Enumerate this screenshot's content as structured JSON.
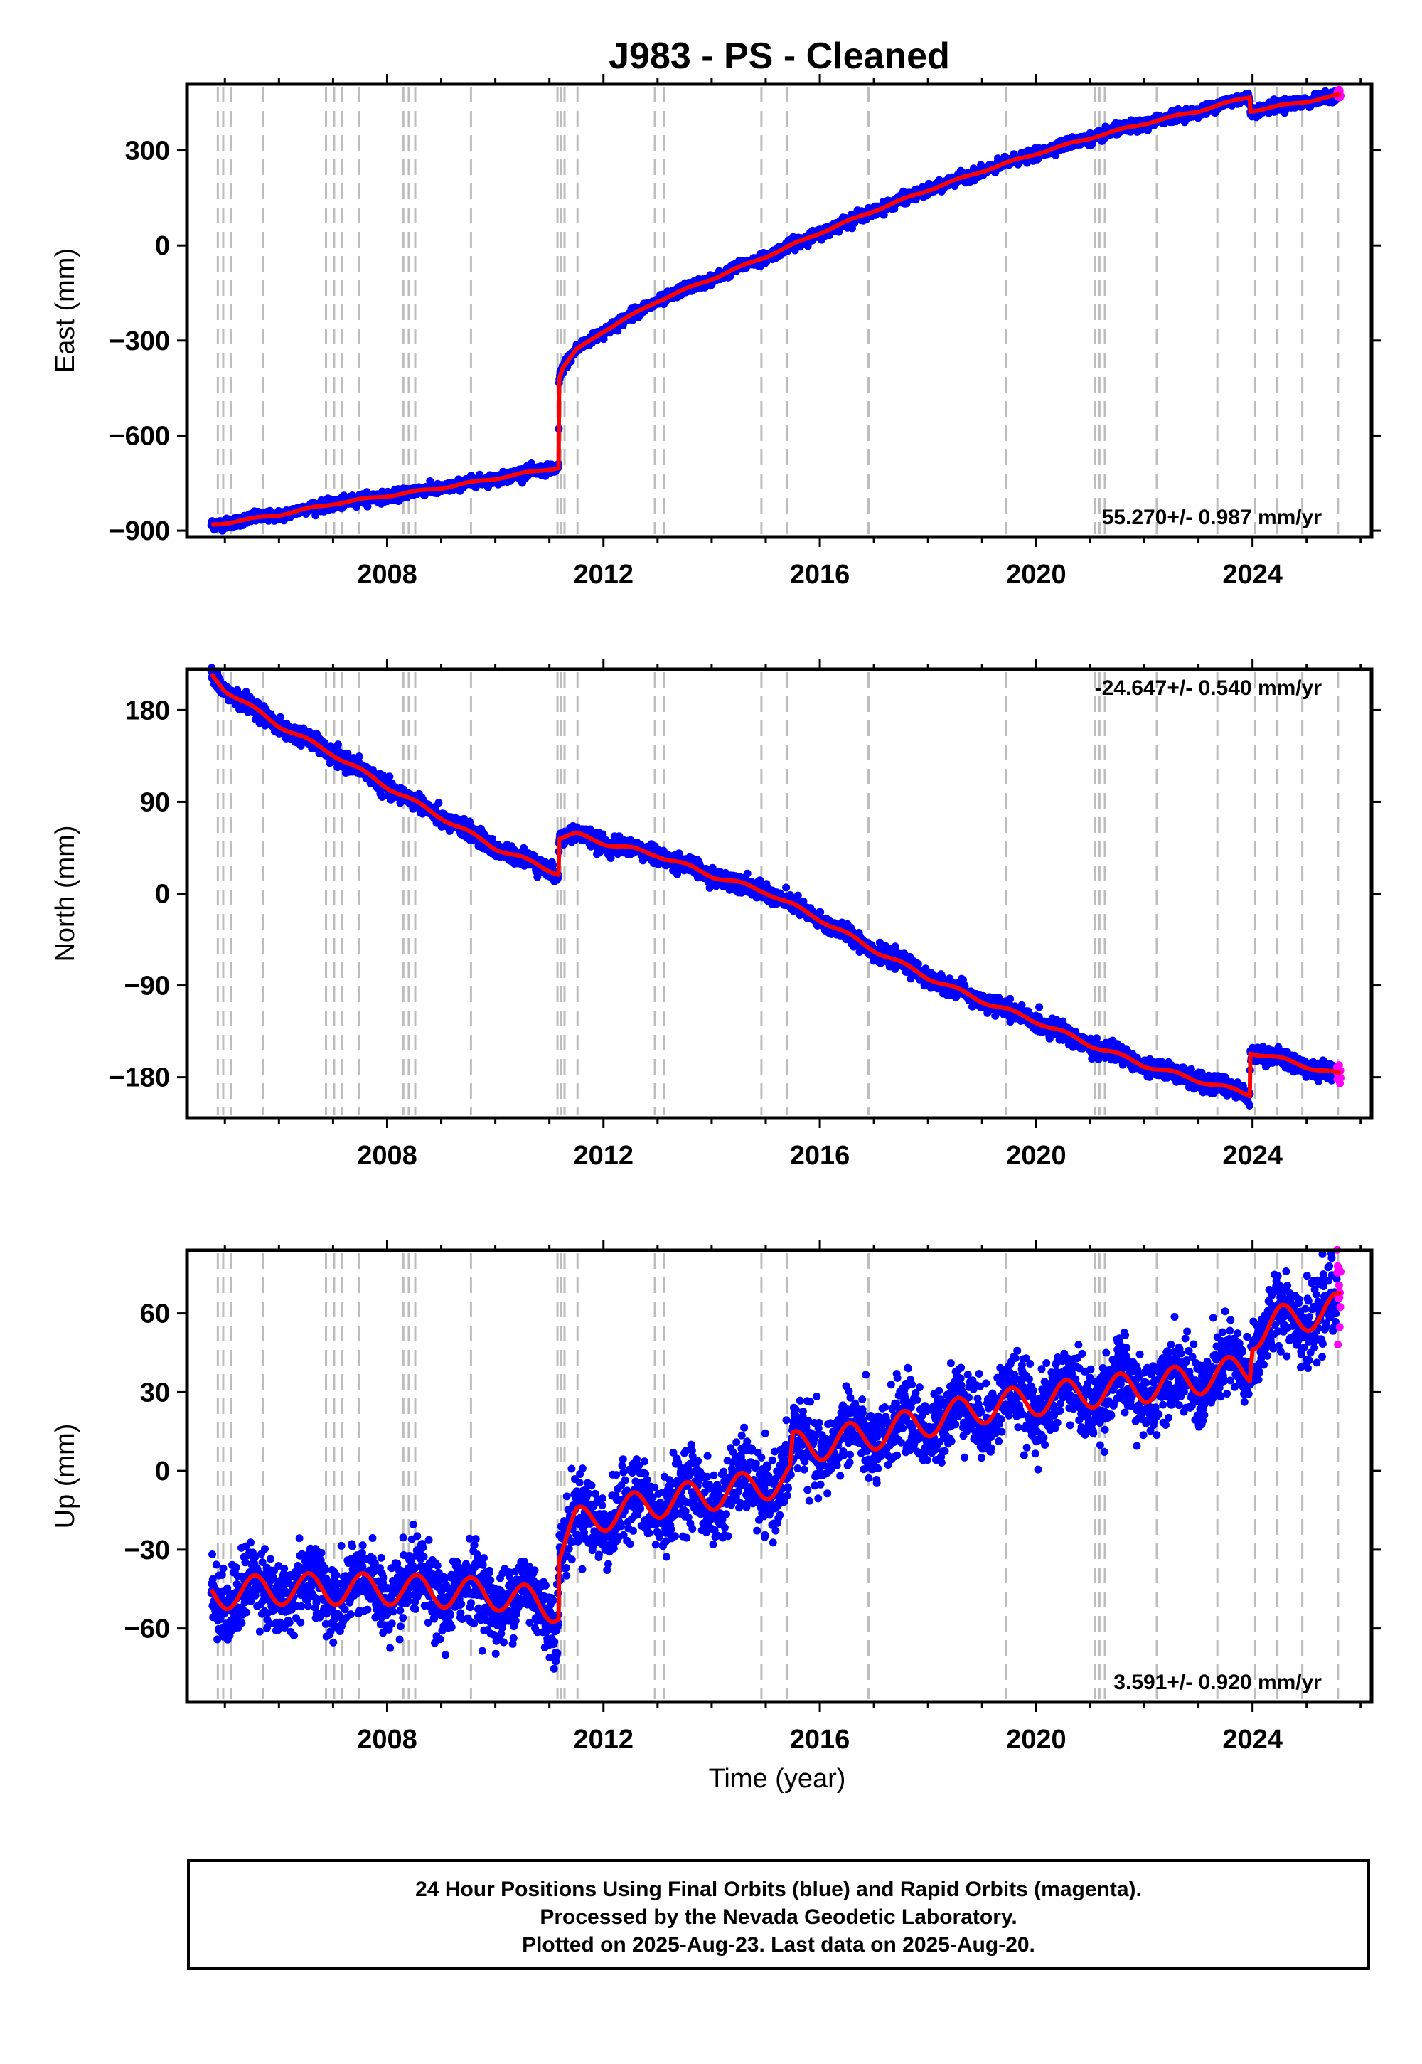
{
  "title": "J983  - PS - Cleaned",
  "colors": {
    "final_orbits": "#0000ff",
    "rapid_orbits": "#ff00ff",
    "model": "#ff0000",
    "equipment_lines": "#bdbdbd",
    "frame": "#000000"
  },
  "xlabel": "Time (year)",
  "footer": {
    "line1": "24 Hour Positions Using Final Orbits (blue) and Rapid Orbits (magenta).",
    "line2": "Processed by the Nevada Geodetic Laboratory.",
    "line3": "Plotted on 2025-Aug-23. Last data on 2025-Aug-20."
  },
  "chart_data": [
    {
      "type": "scatter",
      "ylabel": "East (mm)",
      "rate_text": "55.270+/- 0.987 mm/yr",
      "rate_position": "bottom-right",
      "xlim": [
        2004.3,
        2026.2
      ],
      "ylim": [
        -920,
        510
      ],
      "x_ticks": [
        2008,
        2012,
        2016,
        2020,
        2024
      ],
      "y_ticks": [
        300,
        0,
        -300,
        -600,
        -900
      ],
      "y_tick_labels": [
        "300",
        "0",
        "−300",
        "−600",
        "−900"
      ],
      "show_x_labels": true,
      "model_knots": [
        [
          2004.75,
          -882
        ],
        [
          2006.0,
          -850
        ],
        [
          2007.0,
          -815
        ],
        [
          2008.0,
          -790
        ],
        [
          2009.0,
          -765
        ],
        [
          2010.0,
          -735
        ],
        [
          2011.17,
          -700
        ],
        [
          2011.18,
          -420
        ],
        [
          2011.25,
          -385
        ],
        [
          2011.5,
          -330
        ],
        [
          2012.0,
          -270
        ],
        [
          2013.0,
          -175
        ],
        [
          2014.0,
          -105
        ],
        [
          2015.0,
          -35
        ],
        [
          2016.0,
          40
        ],
        [
          2017.0,
          110
        ],
        [
          2018.0,
          175
        ],
        [
          2019.0,
          235
        ],
        [
          2020.0,
          290
        ],
        [
          2021.0,
          340
        ],
        [
          2022.0,
          385
        ],
        [
          2023.0,
          425
        ],
        [
          2023.95,
          470
        ],
        [
          2023.96,
          425
        ],
        [
          2024.5,
          440
        ],
        [
          2025.63,
          475
        ]
      ],
      "seasonal_amplitude": 3,
      "scatter": 8
    },
    {
      "type": "scatter",
      "ylabel": "North (mm)",
      "rate_text": "-24.647+/- 0.540 mm/yr",
      "rate_position": "top-right",
      "xlim": [
        2004.3,
        2026.2
      ],
      "ylim": [
        -220,
        220
      ],
      "x_ticks": [
        2008,
        2012,
        2016,
        2020,
        2024
      ],
      "y_ticks": [
        180,
        90,
        0,
        -90,
        -180
      ],
      "y_tick_labels": [
        "180",
        "90",
        "0",
        "−90",
        "−180"
      ],
      "show_x_labels": true,
      "model_knots": [
        [
          2004.75,
          215
        ],
        [
          2005.0,
          200
        ],
        [
          2006.0,
          165
        ],
        [
          2007.0,
          137
        ],
        [
          2008.0,
          105
        ],
        [
          2009.0,
          75
        ],
        [
          2010.0,
          45
        ],
        [
          2011.17,
          20
        ],
        [
          2011.18,
          55
        ],
        [
          2011.5,
          58
        ],
        [
          2012.0,
          50
        ],
        [
          2013.0,
          38
        ],
        [
          2014.0,
          18
        ],
        [
          2015.0,
          2
        ],
        [
          2016.0,
          -25
        ],
        [
          2017.0,
          -55
        ],
        [
          2018.0,
          -82
        ],
        [
          2019.0,
          -105
        ],
        [
          2020.0,
          -125
        ],
        [
          2021.0,
          -148
        ],
        [
          2022.0,
          -168
        ],
        [
          2023.0,
          -183
        ],
        [
          2023.95,
          -197
        ],
        [
          2023.96,
          -155
        ],
        [
          2024.5,
          -162
        ],
        [
          2025.63,
          -178
        ]
      ],
      "seasonal_amplitude": 2,
      "scatter": 4
    },
    {
      "type": "scatter",
      "ylabel": "Up (mm)",
      "rate_text": "3.591+/- 0.920 mm/yr",
      "rate_position": "bottom-right",
      "xlim": [
        2004.3,
        2026.2
      ],
      "ylim": [
        -88,
        84
      ],
      "x_ticks": [
        2008,
        2012,
        2016,
        2020,
        2024
      ],
      "y_ticks": [
        60,
        30,
        0,
        -30,
        -60
      ],
      "y_tick_labels": [
        "60",
        "30",
        "0",
        "−30",
        "−60"
      ],
      "show_x_labels": true,
      "model_knots": [
        [
          2004.75,
          -47
        ],
        [
          2006.0,
          -45
        ],
        [
          2008.0,
          -45
        ],
        [
          2010.0,
          -47
        ],
        [
          2011.17,
          -52
        ],
        [
          2011.18,
          -30
        ],
        [
          2011.5,
          -20
        ],
        [
          2012.0,
          -17
        ],
        [
          2013.0,
          -12
        ],
        [
          2014.0,
          -9
        ],
        [
          2015.0,
          -5
        ],
        [
          2015.45,
          -3
        ],
        [
          2015.5,
          9
        ],
        [
          2016.0,
          10
        ],
        [
          2017.0,
          14
        ],
        [
          2018.0,
          19
        ],
        [
          2019.0,
          24
        ],
        [
          2020.0,
          27
        ],
        [
          2021.0,
          30
        ],
        [
          2022.0,
          32
        ],
        [
          2023.0,
          35
        ],
        [
          2023.95,
          39
        ],
        [
          2024.0,
          52
        ],
        [
          2024.5,
          57
        ],
        [
          2025.63,
          62
        ]
      ],
      "seasonal_amplitude": 6,
      "scatter": 7
    }
  ],
  "equipment_change_years": [
    2004.87,
    2004.97,
    2005.12,
    2005.7,
    2006.87,
    2007.02,
    2007.17,
    2007.48,
    2008.3,
    2008.4,
    2008.52,
    2009.55,
    2011.15,
    2011.22,
    2011.28,
    2011.52,
    2012.95,
    2013.12,
    2014.92,
    2015.4,
    2016.9,
    2019.45,
    2021.08,
    2021.17,
    2021.27,
    2022.23,
    2023.35,
    2024.05,
    2024.45,
    2024.92,
    2025.58
  ],
  "last_data_year": 2025.63,
  "rapid_orbit_start_year": 2025.56
}
